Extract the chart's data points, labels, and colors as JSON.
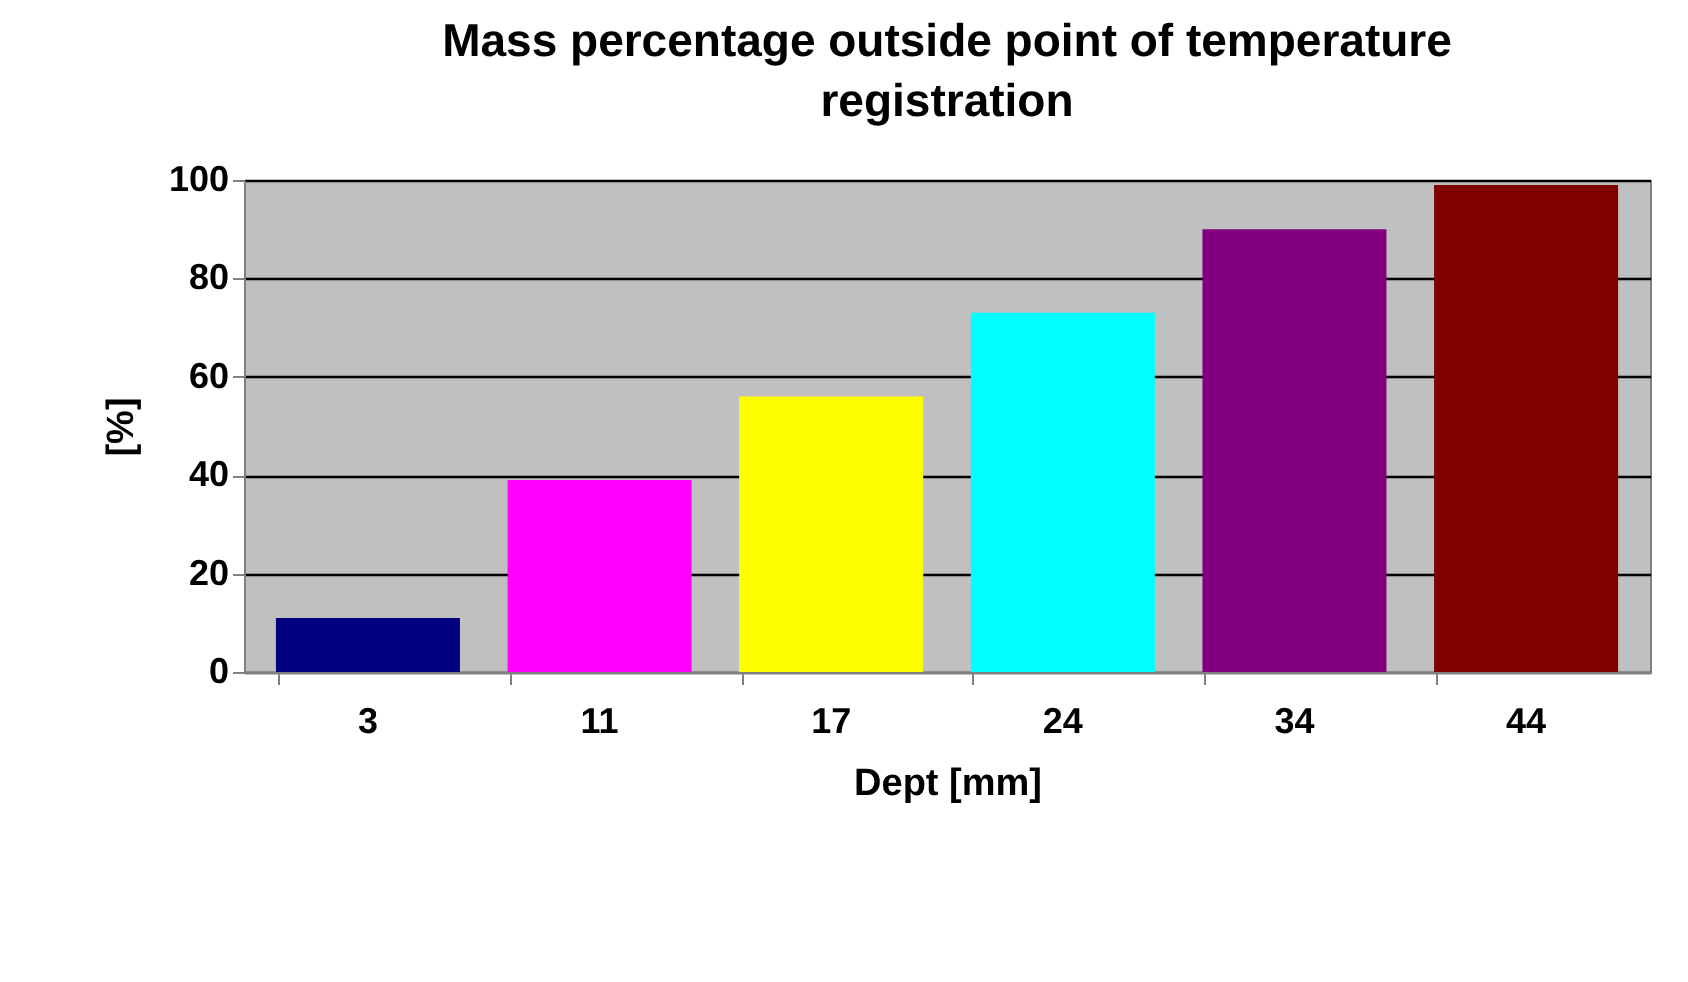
{
  "chart_data": {
    "type": "bar",
    "title": "Mass percentage outside point of temperature registration",
    "xlabel": "Dept [mm]",
    "ylabel": "[%]",
    "categories": [
      "3",
      "11",
      "17",
      "24",
      "34",
      "44"
    ],
    "values": [
      11,
      39,
      56,
      73,
      90,
      99
    ],
    "colors": [
      "#000080",
      "#ff00ff",
      "#ffff00",
      "#00ffff",
      "#800080",
      "#800000"
    ],
    "ylim": [
      0,
      100
    ],
    "yticks": [
      0,
      20,
      40,
      60,
      80,
      100
    ],
    "grid": "y",
    "legend": false
  }
}
